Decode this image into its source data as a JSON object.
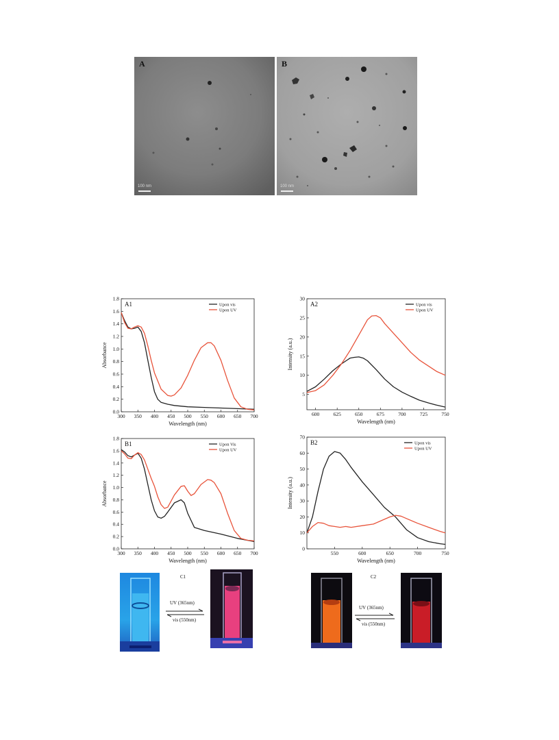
{
  "tem": {
    "panel_a": {
      "label": "A",
      "scale_bar": "100 nm"
    },
    "panel_b": {
      "label": "B",
      "scale_bar": "100 nm"
    }
  },
  "plots": {
    "a1": {
      "label": "A1",
      "chart_data": {
        "type": "line",
        "xlabel": "Wavelength (nm)",
        "ylabel": "Absorbance",
        "xlim": [
          300,
          700
        ],
        "ylim": [
          0,
          1.8
        ],
        "xticks": [
          300,
          350,
          400,
          450,
          500,
          550,
          600,
          650,
          700
        ],
        "yticks": [
          0.0,
          0.2,
          0.4,
          0.6,
          0.8,
          1.0,
          1.2,
          1.4,
          1.6,
          1.8
        ],
        "legend_position": "top-right",
        "series": [
          {
            "name": "Upon vis",
            "color": "#222222",
            "x": [
              300,
              310,
              320,
              330,
              340,
              350,
              360,
              370,
              380,
              390,
              400,
              410,
              420,
              440,
              460,
              500,
              550,
              600,
              650,
              700
            ],
            "y": [
              1.58,
              1.45,
              1.35,
              1.32,
              1.33,
              1.35,
              1.28,
              1.1,
              0.82,
              0.55,
              0.32,
              0.2,
              0.15,
              0.12,
              0.1,
              0.08,
              0.07,
              0.06,
              0.05,
              0.04
            ]
          },
          {
            "name": "Upon UV",
            "color": "#e8533a",
            "x": [
              300,
              310,
              320,
              330,
              340,
              350,
              360,
              370,
              380,
              390,
              400,
              420,
              440,
              450,
              460,
              480,
              500,
              520,
              540,
              560,
              570,
              580,
              600,
              620,
              640,
              660,
              680,
              700
            ],
            "y": [
              1.58,
              1.42,
              1.33,
              1.32,
              1.35,
              1.37,
              1.35,
              1.25,
              1.05,
              0.82,
              0.62,
              0.36,
              0.26,
              0.25,
              0.27,
              0.38,
              0.58,
              0.82,
              1.02,
              1.1,
              1.1,
              1.05,
              0.82,
              0.5,
              0.22,
              0.08,
              0.04,
              0.03
            ]
          }
        ]
      }
    },
    "a2": {
      "label": "A2",
      "chart_data": {
        "type": "line",
        "xlabel": "Wavelength (nm)",
        "ylabel": "Intensity (a.u.)",
        "xlim": [
          590,
          750
        ],
        "ylim": [
          1,
          30
        ],
        "xticks": [
          600,
          625,
          650,
          675,
          700,
          725,
          750
        ],
        "yticks": [
          5,
          10,
          15,
          20,
          25,
          30
        ],
        "legend_position": "top-right",
        "series": [
          {
            "name": "Upon vis",
            "color": "#222222",
            "x": [
              590,
              600,
              610,
              620,
              630,
              640,
              645,
              650,
              655,
              660,
              670,
              680,
              690,
              700,
              710,
              720,
              730,
              740,
              750
            ],
            "y": [
              5.8,
              7,
              9,
              11.2,
              13,
              14.5,
              14.7,
              14.8,
              14.5,
              13.8,
              11.5,
              9,
              7,
              5.6,
              4.5,
              3.5,
              2.8,
              2.2,
              1.7
            ]
          },
          {
            "name": "Upon UV",
            "color": "#e8533a",
            "x": [
              590,
              600,
              610,
              620,
              630,
              640,
              650,
              660,
              665,
              670,
              675,
              680,
              690,
              700,
              710,
              720,
              730,
              740,
              750
            ],
            "y": [
              5.5,
              6,
              7.5,
              10,
              13,
              16.5,
              20.5,
              24.5,
              25.5,
              25.6,
              25,
              23.5,
              21,
              18.5,
              16,
              14,
              12.5,
              11,
              10
            ]
          }
        ]
      }
    },
    "b1": {
      "label": "B1",
      "chart_data": {
        "type": "line",
        "xlabel": "Wavelength (nm)",
        "ylabel": "Absorbance",
        "xlim": [
          300,
          700
        ],
        "ylim": [
          0,
          1.8
        ],
        "xticks": [
          300,
          350,
          400,
          450,
          500,
          550,
          600,
          650,
          700
        ],
        "yticks": [
          0.0,
          0.2,
          0.4,
          0.6,
          0.8,
          1.0,
          1.2,
          1.4,
          1.6,
          1.8
        ],
        "legend_position": "top-right",
        "series": [
          {
            "name": "Upon Vis",
            "color": "#222222",
            "x": [
              300,
              310,
              320,
              330,
              340,
              350,
              360,
              370,
              380,
              390,
              400,
              410,
              420,
              430,
              440,
              460,
              480,
              490,
              500,
              520,
              550,
              600,
              650,
              700
            ],
            "y": [
              1.62,
              1.58,
              1.52,
              1.5,
              1.53,
              1.56,
              1.48,
              1.3,
              1.05,
              0.8,
              0.62,
              0.52,
              0.5,
              0.53,
              0.6,
              0.75,
              0.8,
              0.75,
              0.58,
              0.35,
              0.3,
              0.24,
              0.17,
              0.12
            ]
          },
          {
            "name": "Upon UV",
            "color": "#e8533a",
            "x": [
              300,
              310,
              320,
              330,
              340,
              350,
              360,
              370,
              380,
              390,
              400,
              410,
              420,
              430,
              440,
              450,
              460,
              480,
              490,
              500,
              510,
              520,
              540,
              560,
              570,
              580,
              600,
              620,
              640,
              660,
              680,
              700
            ],
            "y": [
              1.6,
              1.55,
              1.48,
              1.47,
              1.53,
              1.57,
              1.54,
              1.45,
              1.3,
              1.15,
              1.02,
              0.85,
              0.72,
              0.66,
              0.68,
              0.78,
              0.88,
              1.02,
              1.03,
              0.94,
              0.87,
              0.9,
              1.05,
              1.13,
              1.12,
              1.08,
              0.9,
              0.58,
              0.3,
              0.17,
              0.14,
              0.13
            ]
          }
        ]
      }
    },
    "b2": {
      "label": "B2",
      "chart_data": {
        "type": "line",
        "xlabel": "Wavelength (nm)",
        "ylabel": "Intensity (a.u.)",
        "xlim": [
          500,
          750
        ],
        "ylim": [
          0,
          70
        ],
        "xticks": [
          550,
          600,
          650,
          700,
          750
        ],
        "yticks": [
          0,
          10,
          20,
          30,
          40,
          50,
          60,
          70
        ],
        "legend_position": "top-right",
        "series": [
          {
            "name": "Upon vis",
            "color": "#222222",
            "x": [
              500,
              510,
              520,
              530,
              540,
              550,
              560,
              570,
              580,
              600,
              620,
              640,
              660,
              680,
              700,
              720,
              740,
              750
            ],
            "y": [
              10,
              20,
              36,
              50,
              58,
              61,
              60,
              56,
              51,
              42,
              34,
              26,
              20,
              12,
              7,
              4.5,
              3.2,
              2.8
            ]
          },
          {
            "name": "Upon UV",
            "color": "#e8533a",
            "x": [
              500,
              510,
              520,
              530,
              540,
              550,
              560,
              570,
              580,
              600,
              620,
              640,
              650,
              660,
              670,
              680,
              700,
              720,
              740,
              750
            ],
            "y": [
              10,
              14,
              16.5,
              16,
              14.5,
              14,
              13.5,
              14,
              13.5,
              14.5,
              15.5,
              18.5,
              20,
              21,
              20.5,
              19,
              16,
              13.5,
              11,
              10
            ]
          }
        ]
      }
    }
  },
  "photos": {
    "c1": {
      "label": "C1",
      "forward": "UV (365nm)",
      "reverse": "vis (550nm)"
    },
    "c2": {
      "label": "C2",
      "forward": "UV (365nm)",
      "reverse": "vis (550nm)"
    }
  }
}
